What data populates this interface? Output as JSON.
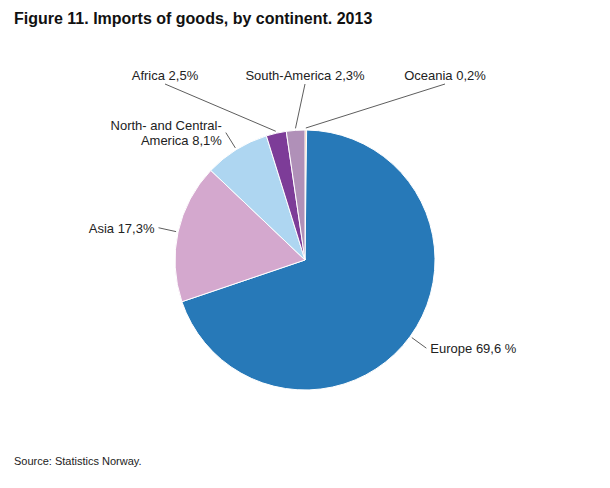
{
  "chart_data": {
    "type": "pie",
    "title": "Figure 11. Imports of goods, by continent. 2013",
    "annotations": [
      "Source: Statistics Norway."
    ],
    "categories": [
      "Oceania 0,2%",
      "Europe 69,6 %",
      "Asia 17,3%",
      "North- and Central-\nAmerica 8,1%",
      "Africa 2,5%",
      "South-America 2,3%"
    ],
    "values": [
      0.2,
      69.6,
      17.3,
      8.1,
      2.5,
      2.3
    ],
    "colors": [
      "#E8873A",
      "#2779B8",
      "#D4A8CE",
      "#AED6F1",
      "#7D3C98",
      "#B090B8"
    ]
  }
}
